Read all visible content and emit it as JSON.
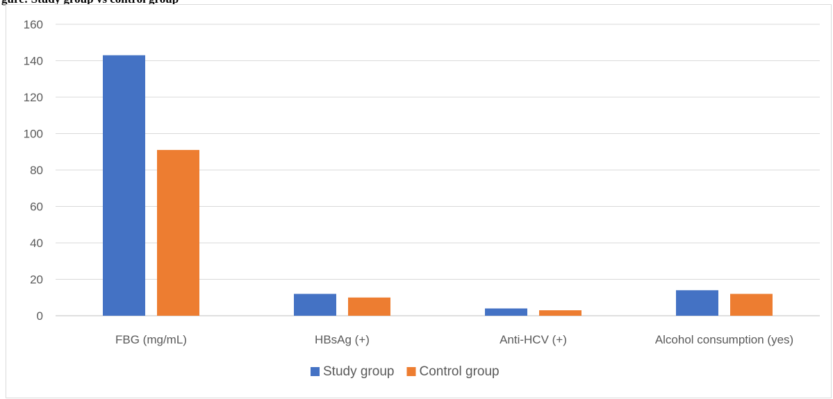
{
  "chart_data": {
    "type": "bar",
    "title": "gure: Study group vs control group",
    "categories": [
      "FBG (mg/mL)",
      "HBsAg (+)",
      "Anti-HCV (+)",
      "Alcohol consumption (yes)"
    ],
    "series": [
      {
        "name": "Study group",
        "values": [
          143,
          12,
          4,
          14
        ],
        "color": "#4472c4"
      },
      {
        "name": "Control group",
        "values": [
          91,
          10,
          3,
          12
        ],
        "color": "#ed7d31"
      }
    ],
    "yticks": [
      0,
      20,
      40,
      60,
      80,
      100,
      120,
      140,
      160
    ],
    "ylim": [
      0,
      160
    ],
    "grid": true,
    "legend": "bottom-center"
  }
}
